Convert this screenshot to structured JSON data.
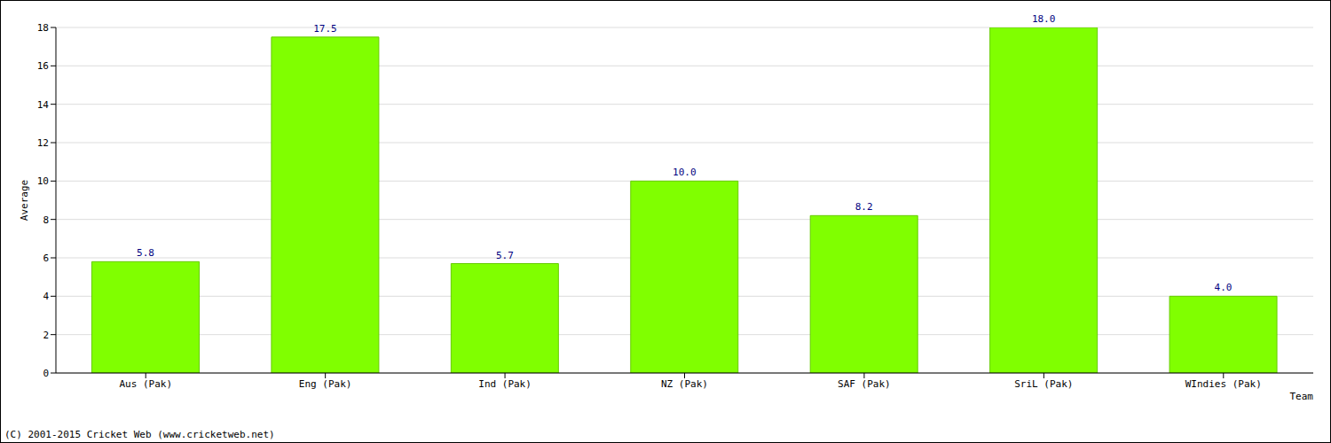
{
  "chart_data": {
    "type": "bar",
    "x_label": "Team",
    "y_label": "Average",
    "footer": "(C) 2001-2015 Cricket Web (www.cricketweb.net)",
    "categories": [
      "Aus (Pak)",
      "Eng (Pak)",
      "Ind (Pak)",
      "NZ (Pak)",
      "SAF (Pak)",
      "SriL (Pak)",
      "WIndies (Pak)"
    ],
    "values": [
      5.8,
      17.5,
      5.7,
      10.0,
      8.2,
      18.0,
      4.0
    ],
    "value_labels": [
      "5.8",
      "17.5",
      "5.7",
      "10.0",
      "8.2",
      "18.0",
      "4.0"
    ],
    "color": "#80ff00",
    "ylim": [
      0,
      18
    ],
    "yticks": [
      0,
      2,
      4,
      6,
      8,
      10,
      12,
      14,
      16,
      18
    ],
    "grid": true,
    "data_labels": true
  }
}
